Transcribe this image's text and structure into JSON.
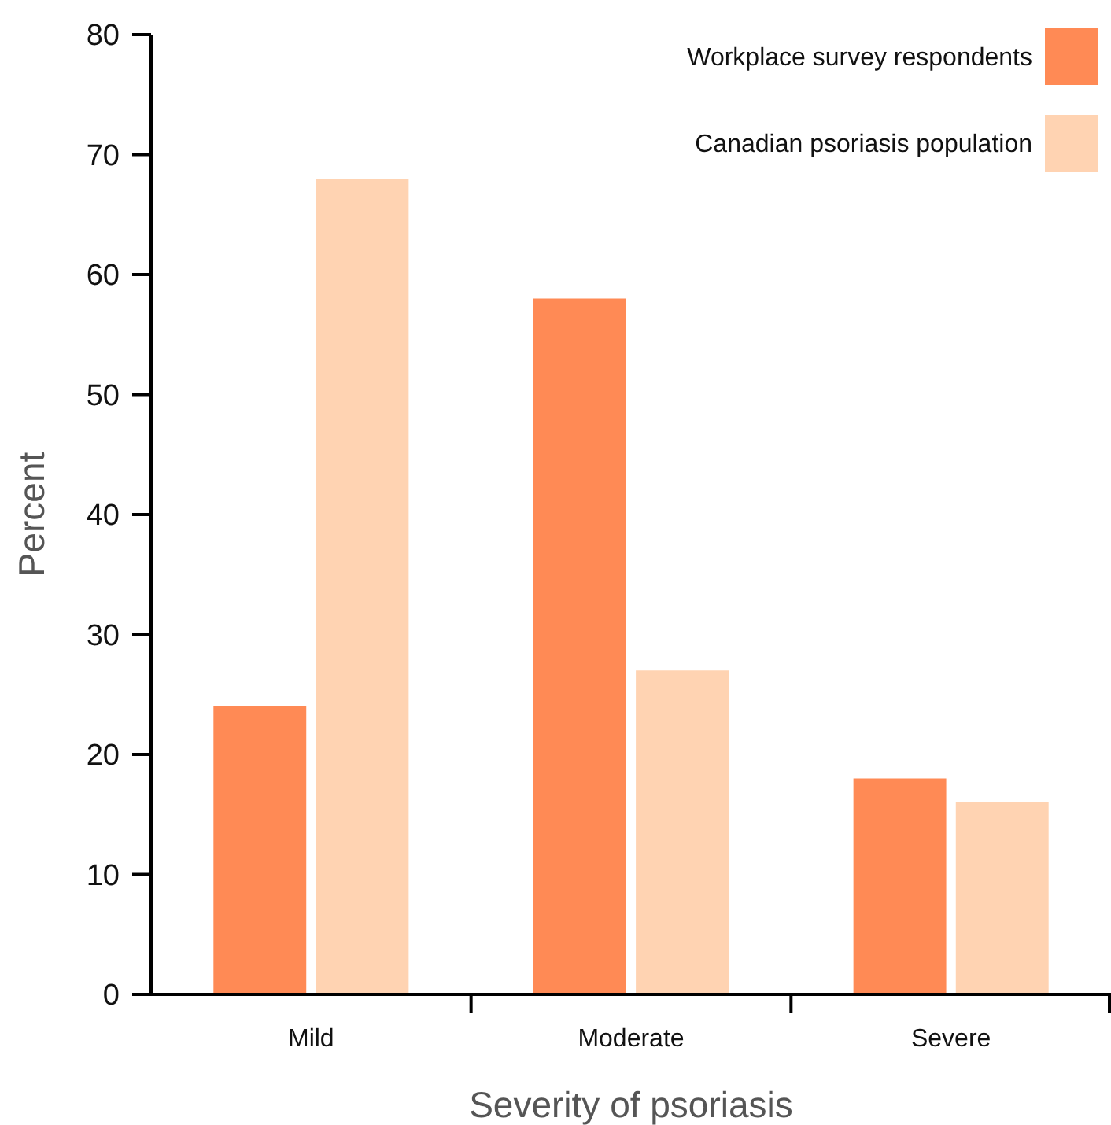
{
  "chart_data": {
    "type": "bar",
    "xlabel": "Severity of psoriasis",
    "ylabel": "Percent",
    "categories": [
      "Mild",
      "Moderate",
      "Severe"
    ],
    "series": [
      {
        "name": "Workplace survey respondents",
        "color": "#ff8a55",
        "values": [
          24,
          58,
          18
        ]
      },
      {
        "name": "Canadian psoriasis population",
        "color": "#ffd3b2",
        "values": [
          68,
          27,
          16
        ]
      }
    ],
    "ylim": [
      0,
      80
    ],
    "yticks": [
      0,
      10,
      20,
      30,
      40,
      50,
      60,
      70,
      80
    ],
    "grid": false,
    "legend": "top right"
  }
}
